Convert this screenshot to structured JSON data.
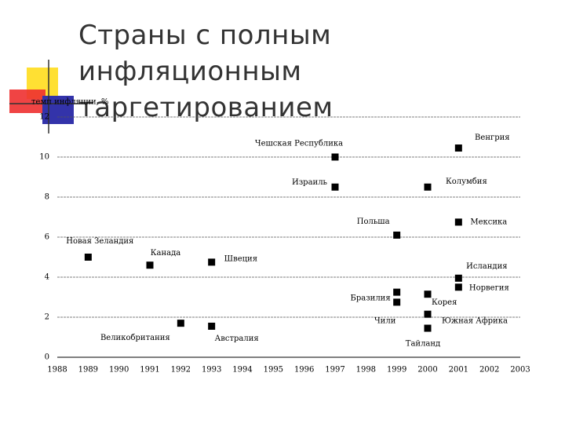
{
  "chart_data": {
    "type": "scatter",
    "title": "Страны с полным инфляционным таргетированием",
    "y_label": "темп инфляции, %",
    "color": "#000000",
    "points": [
      {
        "label": "Новая Зеландия",
        "x": 1989,
        "y": 5
      },
      {
        "label": "Канада",
        "x": 1991,
        "y": 4.6
      },
      {
        "label": "Швеция",
        "x": 1993,
        "y": 4.75
      },
      {
        "label": "Великобритания",
        "x": 1992,
        "y": 1.7
      },
      {
        "label": "Австралия",
        "x": 1993,
        "y": 1.55
      },
      {
        "label": "Чешская Республика",
        "x": 1997,
        "y": 10
      },
      {
        "label": "Израиль",
        "x": 1997,
        "y": 8.5
      },
      {
        "label": "Польша",
        "x": 1999,
        "y": 6.1
      },
      {
        "label": "Бразилия",
        "x": 1999,
        "y": 3.25
      },
      {
        "label": "Чили",
        "x": 1999,
        "y": 2.75
      },
      {
        "label": "Колумбия",
        "x": 2000,
        "y": 8.5
      },
      {
        "label": "Корея",
        "x": 2000,
        "y": 3.15
      },
      {
        "label": "Южная Африка",
        "x": 2000,
        "y": 2.15
      },
      {
        "label": "Тайланд",
        "x": 2000,
        "y": 1.45
      },
      {
        "label": "Венгрия",
        "x": 2001,
        "y": 10.45
      },
      {
        "label": "Мексика",
        "x": 2001,
        "y": 6.75
      },
      {
        "label": "Исландия",
        "x": 2001,
        "y": 3.95
      },
      {
        "label": "Норвегия",
        "x": 2001,
        "y": 3.5
      }
    ],
    "xlim": [
      1988,
      2003
    ],
    "ylim": [
      0,
      12
    ],
    "xticks": [
      1988,
      1989,
      1990,
      1991,
      1992,
      1993,
      1994,
      1995,
      1996,
      1997,
      1998,
      1999,
      2000,
      2001,
      2002,
      2003
    ],
    "yticks": [
      0,
      2,
      4,
      6,
      8,
      10,
      12
    ],
    "grid": true
  }
}
